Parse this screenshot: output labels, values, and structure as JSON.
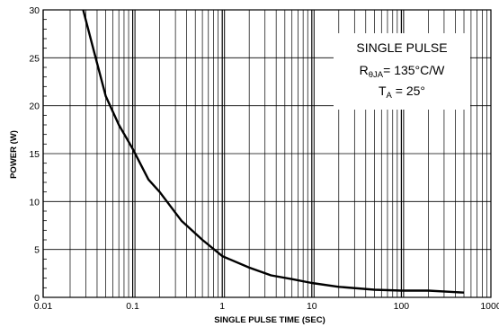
{
  "chart_data": {
    "type": "line",
    "title": "",
    "xlabel": "SINGLE PULSE TIME (SEC)",
    "ylabel": "POWER (W)",
    "x_scale": "log",
    "xlim": [
      0.01,
      1000
    ],
    "ylim": [
      0,
      30
    ],
    "grid": true,
    "x_tick_labels": [
      "0.01",
      "0.1",
      "1",
      "10",
      "100",
      "1000"
    ],
    "x_ticks": [
      0.01,
      0.1,
      1,
      10,
      100,
      1000
    ],
    "y_tick_labels": [
      "0",
      "5",
      "10",
      "15",
      "20",
      "25",
      "30"
    ],
    "y_ticks": [
      0,
      5,
      10,
      15,
      20,
      25,
      30
    ],
    "series": [
      {
        "x": [
          0.028,
          0.035,
          0.05,
          0.07,
          0.1,
          0.15,
          0.2,
          0.35,
          0.6,
          1.0,
          2.0,
          3.5,
          6.0,
          10,
          20,
          50,
          100,
          200,
          500
        ],
        "y": [
          30,
          26.5,
          21,
          18,
          15.5,
          12.3,
          11,
          8,
          6,
          4.3,
          3.1,
          2.3,
          1.9,
          1.5,
          1.1,
          0.8,
          0.7,
          0.7,
          0.5
        ]
      }
    ],
    "annotation": {
      "line1": "SINGLE PULSE",
      "line2_main": "R",
      "line2_sub": "θJA",
      "line2_rest": "= 135°C/W",
      "line3_main": "T",
      "line3_sub": "A",
      "line3_rest": " = 25°"
    }
  }
}
